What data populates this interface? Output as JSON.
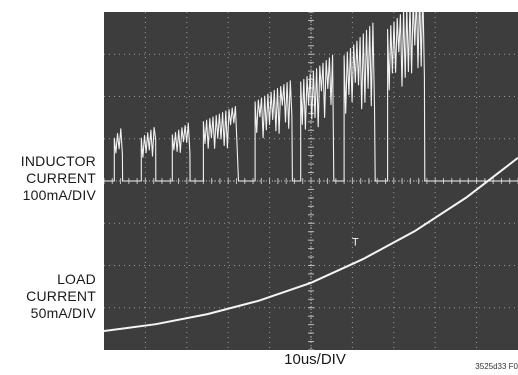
{
  "chart_data": {
    "type": "line",
    "title": "",
    "xlabel": "10us/DIV",
    "figure_code": "3525d33 F0",
    "grid": true,
    "divisions": {
      "x": 10,
      "y": 8
    },
    "series": [
      {
        "name": "INDUCTOR CURRENT",
        "axis_label_lines": [
          "INDUCTOR",
          "CURRENT",
          "100mA/DIV"
        ],
        "unit": "mA",
        "scale_per_div": 100,
        "baseline_div": 4.0,
        "bursts": [
          {
            "t_start_div": 0.25,
            "t_end_div": 0.45,
            "peak_mA": 130
          },
          {
            "t_start_div": 0.9,
            "t_end_div": 1.25,
            "peak_mA": 130
          },
          {
            "t_start_div": 1.65,
            "t_end_div": 2.08,
            "peak_mA": 140
          },
          {
            "t_start_div": 2.4,
            "t_end_div": 3.25,
            "peak_mA": 180
          },
          {
            "t_start_div": 3.65,
            "t_end_div": 4.55,
            "peak_mA": 240
          },
          {
            "t_start_div": 4.75,
            "t_end_div": 5.55,
            "peak_mA": 300
          },
          {
            "t_start_div": 5.8,
            "t_end_div": 6.55,
            "peak_mA": 380
          },
          {
            "t_start_div": 6.85,
            "t_end_div": 7.75,
            "peak_mA": 460
          }
        ]
      },
      {
        "name": "LOAD CURRENT",
        "axis_label_lines": [
          "LOAD",
          "CURRENT",
          "50mA/DIV"
        ],
        "unit": "mA",
        "scale_per_div": 50,
        "baseline_div": 7.55,
        "x_div": [
          0,
          1,
          2,
          3,
          4,
          5,
          6,
          7,
          8
        ],
        "y_mA": [
          0,
          8,
          20,
          36,
          57,
          85,
          118,
          158,
          205
        ]
      }
    ]
  }
}
